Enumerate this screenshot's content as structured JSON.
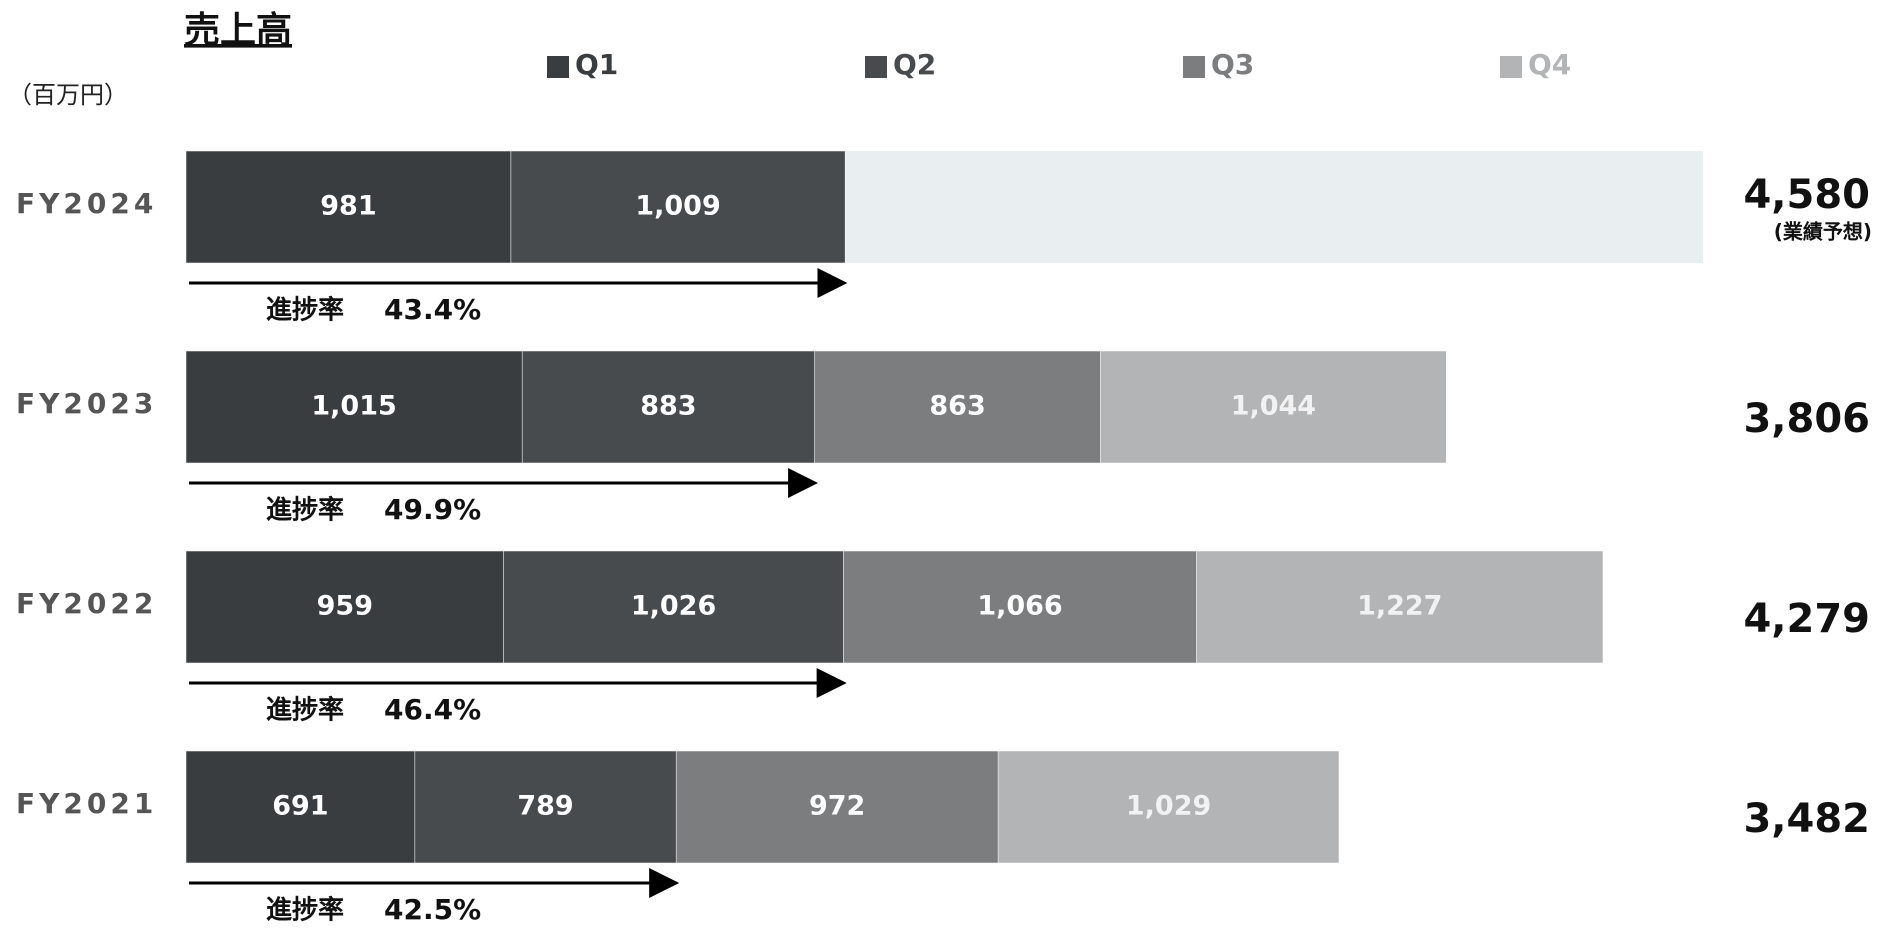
{
  "chart_data": {
    "type": "bar",
    "orientation": "horizontal",
    "stacked": true,
    "title": "売上高",
    "unit_label": "（百万円）",
    "categories": [
      "FY2024",
      "FY2023",
      "FY2022",
      "FY2021"
    ],
    "series": [
      {
        "name": "Q1",
        "color": "#3a3d40",
        "values": [
          981,
          1015,
          959,
          691
        ],
        "value_labels": [
          "981",
          "1,015",
          "959",
          "691"
        ]
      },
      {
        "name": "Q2",
        "color": "#484b4e",
        "values": [
          1009,
          883,
          1026,
          789
        ],
        "value_labels": [
          "1,009",
          "883",
          "1,026",
          "789"
        ]
      },
      {
        "name": "Q3",
        "color": "#7b7d7f",
        "values": [
          null,
          863,
          1066,
          972
        ],
        "value_labels": [
          null,
          "863",
          "1,066",
          "972"
        ]
      },
      {
        "name": "Q4",
        "color": "#b3b4b5",
        "values": [
          null,
          1044,
          1227,
          1029
        ],
        "value_labels": [
          null,
          "1,044",
          "1,227",
          "1,029"
        ]
      }
    ],
    "totals": {
      "values": [
        4580,
        3806,
        4279,
        3482
      ],
      "value_labels": [
        "4,580",
        "3,806",
        "4,279",
        "3,482"
      ],
      "notes": [
        "(業績予想)",
        null,
        null,
        null
      ],
      "note_color": "#e9eef0"
    },
    "progress": {
      "label": "進捗率",
      "values": [
        43.4,
        49.9,
        46.4,
        42.5
      ],
      "value_labels": [
        "43.4%",
        "49.9%",
        "46.4%",
        "42.5%"
      ]
    }
  }
}
